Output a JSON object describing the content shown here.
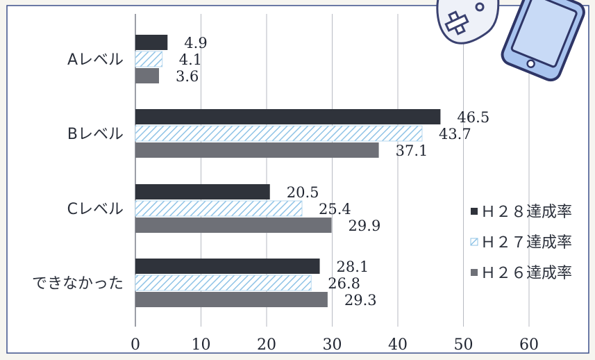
{
  "chart_data": {
    "type": "bar",
    "orientation": "horizontal",
    "categories": [
      "Aレベル",
      "Bレベル",
      "Cレベル",
      "できなかった"
    ],
    "series": [
      {
        "name": "Ｈ２８達成率",
        "values": [
          4.9,
          46.5,
          20.5,
          28.1
        ],
        "color": "#2f333b",
        "pattern": "solid"
      },
      {
        "name": "Ｈ２７達成率",
        "values": [
          4.1,
          43.7,
          25.4,
          26.8
        ],
        "color": "#8fc3e6",
        "pattern": "diagonal-hatch"
      },
      {
        "name": "Ｈ２６達成率",
        "values": [
          3.6,
          37.1,
          29.9,
          29.3
        ],
        "color": "#6e7077",
        "pattern": "solid"
      }
    ],
    "xlim": [
      0,
      60
    ],
    "xticks": [
      "0",
      "10",
      "20",
      "30",
      "40",
      "50",
      "60"
    ],
    "value_labels": [
      [
        "4.9",
        "46.5",
        "20.5",
        "28.1"
      ],
      [
        "4.1",
        "43.7",
        "25.4",
        "26.8"
      ],
      [
        "3.6",
        "37.1",
        "29.9",
        "29.3"
      ]
    ],
    "grid": "vertical",
    "legend_position": "right",
    "title": "",
    "xlabel": "",
    "ylabel": ""
  },
  "decoration": {
    "icons": [
      "game-controller-icon",
      "smartphone-icon"
    ]
  }
}
